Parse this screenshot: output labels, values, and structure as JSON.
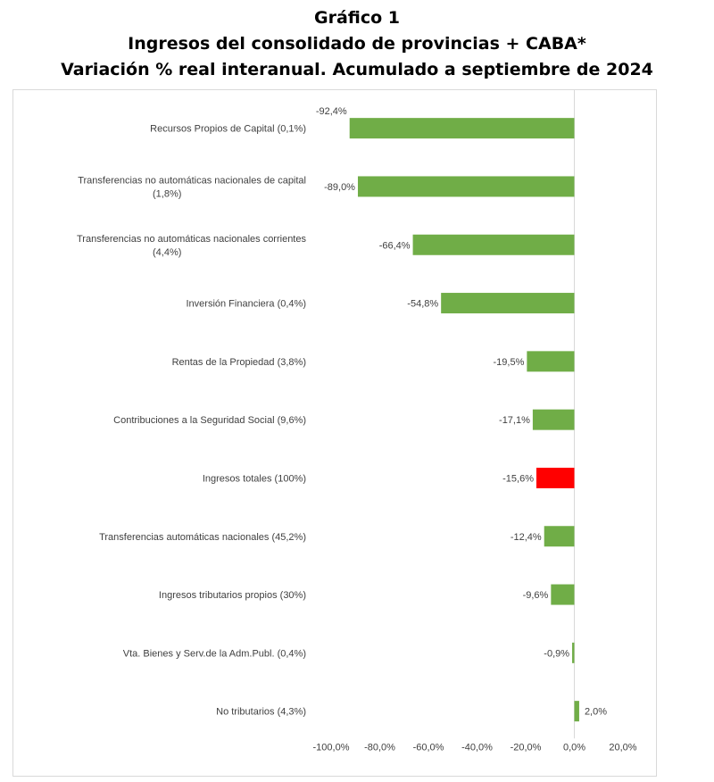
{
  "title_lines": [
    "Gráfico 1",
    "Ingresos del consolidado de provincias + CABA*",
    "Variación % real interanual. Acumulado a septiembre de 2024"
  ],
  "chart_data": {
    "type": "bar",
    "orientation": "horizontal",
    "title": "Gráfico 1 Ingresos del consolidado de provincias + CABA* Variación % real interanual. Acumulado a septiembre de 2024",
    "categories": [
      [
        "Recursos Propios de Capital (0,1%)"
      ],
      [
        "Transferencias no automáticas nacionales de capital",
        "(1,8%)"
      ],
      [
        "Transferencias no automáticas nacionales corrientes",
        "(4,4%)"
      ],
      [
        "Inversión Financiera (0,4%)"
      ],
      [
        "Rentas de la Propiedad (3,8%)"
      ],
      [
        "Contribuciones a la Seguridad Social (9,6%)"
      ],
      [
        "Ingresos totales (100%)"
      ],
      [
        "Transferencias automáticas nacionales (45,2%)"
      ],
      [
        "Ingresos tributarios propios (30%)"
      ],
      [
        "Vta. Bienes y Serv.de la Adm.Publ. (0,4%)"
      ],
      [
        "No tributarios (4,3%)"
      ]
    ],
    "values": [
      -92.4,
      -89.0,
      -66.4,
      -54.8,
      -19.5,
      -17.1,
      -15.6,
      -12.4,
      -9.6,
      -0.9,
      2.0
    ],
    "value_labels": [
      "-92,4%",
      "-89,0%",
      "-66,4%",
      "-54,8%",
      "-19,5%",
      "-17,1%",
      "-15,6%",
      "-12,4%",
      "-9,6%",
      "-0,9%",
      "2,0%"
    ],
    "bar_colors": [
      "#70ad47",
      "#70ad47",
      "#70ad47",
      "#70ad47",
      "#70ad47",
      "#70ad47",
      "#ff0000",
      "#70ad47",
      "#70ad47",
      "#70ad47",
      "#70ad47"
    ],
    "xlim": [
      -100,
      20
    ],
    "xticks": [
      -100,
      -80,
      -60,
      -40,
      -20,
      0,
      20
    ],
    "xtick_labels": [
      "-100,0%",
      "-80,0%",
      "-60,0%",
      "-40,0%",
      "-20,0%",
      "0,0%",
      "20,0%"
    ],
    "grid": false,
    "colors": {
      "bar": "#70ad47",
      "highlight": "#ff0000",
      "zero_line": "#d9d9d9",
      "text": "#404040"
    }
  }
}
